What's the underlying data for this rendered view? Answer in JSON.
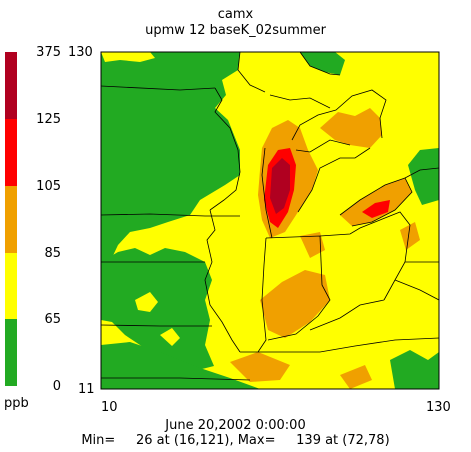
{
  "title": {
    "model": "camx",
    "run": "upmw 12 baseK_02summer"
  },
  "colorbar": {
    "unit": "ppb",
    "levels": [
      "375",
      "125",
      "105",
      "85",
      "65",
      "0"
    ],
    "bands": [
      {
        "from": 0,
        "to": 65,
        "color": "#22aa22"
      },
      {
        "from": 65,
        "to": 85,
        "color": "#ffff00"
      },
      {
        "from": 85,
        "to": 105,
        "color": "#f0a000"
      },
      {
        "from": 105,
        "to": 125,
        "color": "#ff0000"
      },
      {
        "from": 125,
        "to": 375,
        "color": "#b00020"
      }
    ]
  },
  "map_axes": {
    "y_max": "130",
    "y_min": "11",
    "x_min": "10",
    "x_max": "130"
  },
  "footer": {
    "datetime": "June 20,2002  0:00:00",
    "stats": "Min=     26 at (16,121), Max=     139 at (72,78)"
  }
}
